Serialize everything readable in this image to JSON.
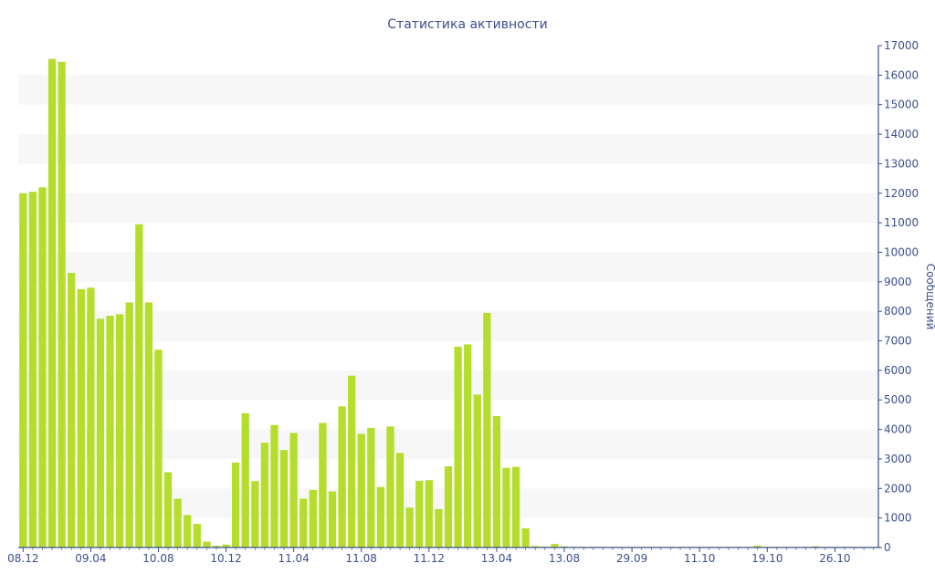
{
  "chart_data": {
    "type": "bar",
    "title": "Статистика активности",
    "ylabel": "Сообщений",
    "xlabel": "",
    "ylim": [
      0,
      17000
    ],
    "yticks": [
      0,
      1000,
      2000,
      3000,
      4000,
      5000,
      6000,
      7000,
      8000,
      9000,
      10000,
      11000,
      12000,
      13000,
      14000,
      15000,
      16000,
      17000
    ],
    "y_axis_position": "right",
    "grid": "alternating horizontal bands",
    "x_tick_labels": [
      {
        "index": 0,
        "label": "08.12"
      },
      {
        "index": 7,
        "label": "09.04"
      },
      {
        "index": 14,
        "label": "10.08"
      },
      {
        "index": 21,
        "label": "10.12"
      },
      {
        "index": 28,
        "label": "11.04"
      },
      {
        "index": 35,
        "label": "11.08"
      },
      {
        "index": 42,
        "label": "11.12"
      },
      {
        "index": 49,
        "label": "13.04"
      },
      {
        "index": 56,
        "label": "13.08"
      },
      {
        "index": 63,
        "label": "29.09"
      },
      {
        "index": 70,
        "label": "11.10"
      },
      {
        "index": 77,
        "label": "19.10"
      },
      {
        "index": 84,
        "label": "26.10"
      }
    ],
    "values": [
      12000,
      12050,
      12200,
      16550,
      16450,
      9300,
      8750,
      8800,
      7750,
      7850,
      7900,
      8300,
      10950,
      8300,
      6700,
      2550,
      1650,
      1100,
      800,
      200,
      60,
      100,
      2880,
      4550,
      2250,
      3550,
      4150,
      3300,
      3880,
      1650,
      1950,
      4220,
      1900,
      4780,
      5820,
      3850,
      4050,
      2050,
      4100,
      3200,
      1350,
      2260,
      2280,
      1300,
      2750,
      6800,
      6880,
      5180,
      7950,
      4450,
      2700,
      2730,
      650,
      50,
      30,
      120,
      40,
      20,
      20,
      20,
      20,
      20,
      20,
      20,
      20,
      20,
      20,
      20,
      20,
      20,
      20,
      20,
      20,
      20,
      20,
      20,
      60,
      20,
      20,
      20,
      20,
      20,
      40,
      20,
      20,
      20,
      20,
      20,
      20
    ],
    "colors": {
      "bar": "#b5dd2c",
      "text": "#3d4f8c",
      "band": "#f7f7f7",
      "axis": "#3d4f8c"
    }
  }
}
